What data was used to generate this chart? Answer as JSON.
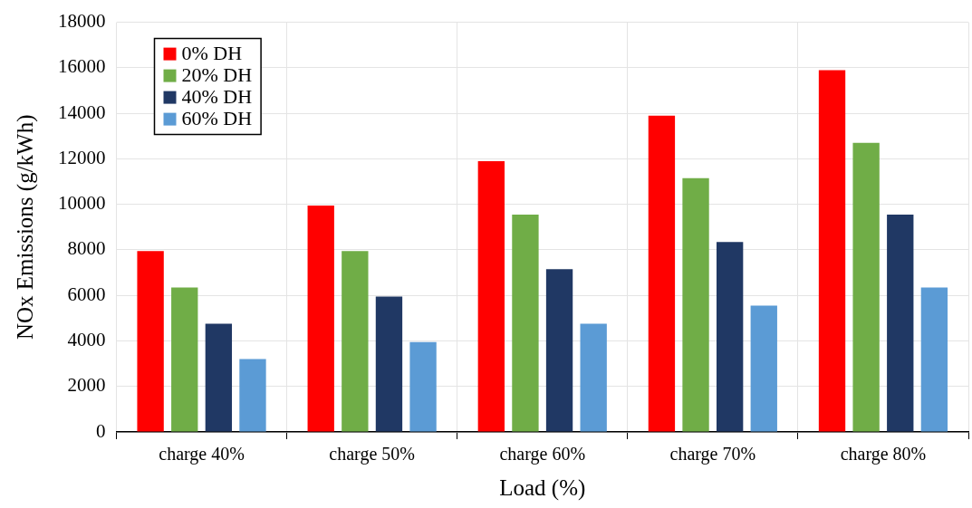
{
  "chart_data": {
    "type": "bar",
    "xlabel": "Load (%)",
    "ylabel": "NOx Emissions (g/kWh)",
    "categories": [
      "charge 40%",
      "charge 50%",
      "charge 60%",
      "charge 70%",
      "charge 80%"
    ],
    "series": [
      {
        "name": "0% DH",
        "color": "#ff0000",
        "values": [
          7950,
          9950,
          11900,
          13900,
          15900
        ]
      },
      {
        "name": "20% DH",
        "color": "#70ad47",
        "values": [
          6350,
          7950,
          9550,
          11150,
          12700
        ]
      },
      {
        "name": "40% DH",
        "color": "#203864",
        "values": [
          4750,
          5950,
          7150,
          8350,
          9550
        ]
      },
      {
        "name": "60% DH",
        "color": "#5b9bd5",
        "values": [
          3200,
          3950,
          4750,
          5550,
          6350
        ]
      }
    ],
    "ylim": [
      0,
      18000
    ],
    "yticks": [
      0,
      2000,
      4000,
      6000,
      8000,
      10000,
      12000,
      14000,
      16000,
      18000
    ],
    "grid": true,
    "legend": "top left"
  }
}
